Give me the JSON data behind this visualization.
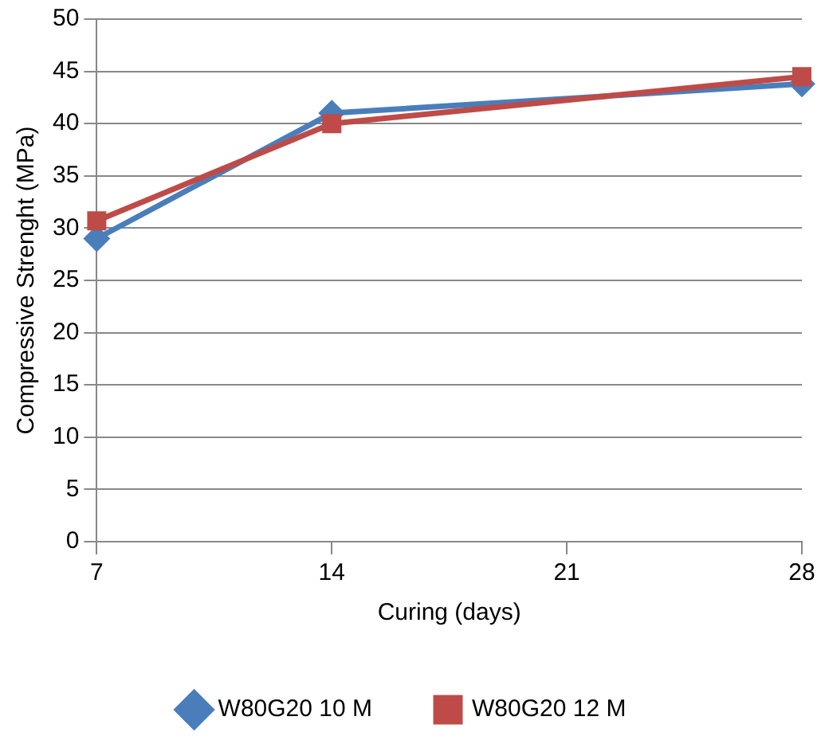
{
  "chart_data": {
    "type": "line",
    "xlabel": "Curing (days)",
    "ylabel": "Compressive Strenght (MPa)",
    "x": [
      7,
      14,
      28
    ],
    "xlim": [
      7,
      28
    ],
    "xticks": [
      7,
      14,
      21,
      28
    ],
    "ylim": [
      0,
      50
    ],
    "yticks": [
      0,
      5,
      10,
      15,
      20,
      25,
      30,
      35,
      40,
      45,
      50
    ],
    "grid": "y",
    "legend": "bottom",
    "series": [
      {
        "name": "W80G20 10 M",
        "color": "#4a7ebb",
        "marker": "diamond",
        "values": [
          29,
          41,
          43.8
        ]
      },
      {
        "name": "W80G20 12 M",
        "color": "#be4b48",
        "marker": "square",
        "values": [
          30.7,
          40,
          44.5
        ]
      }
    ]
  }
}
